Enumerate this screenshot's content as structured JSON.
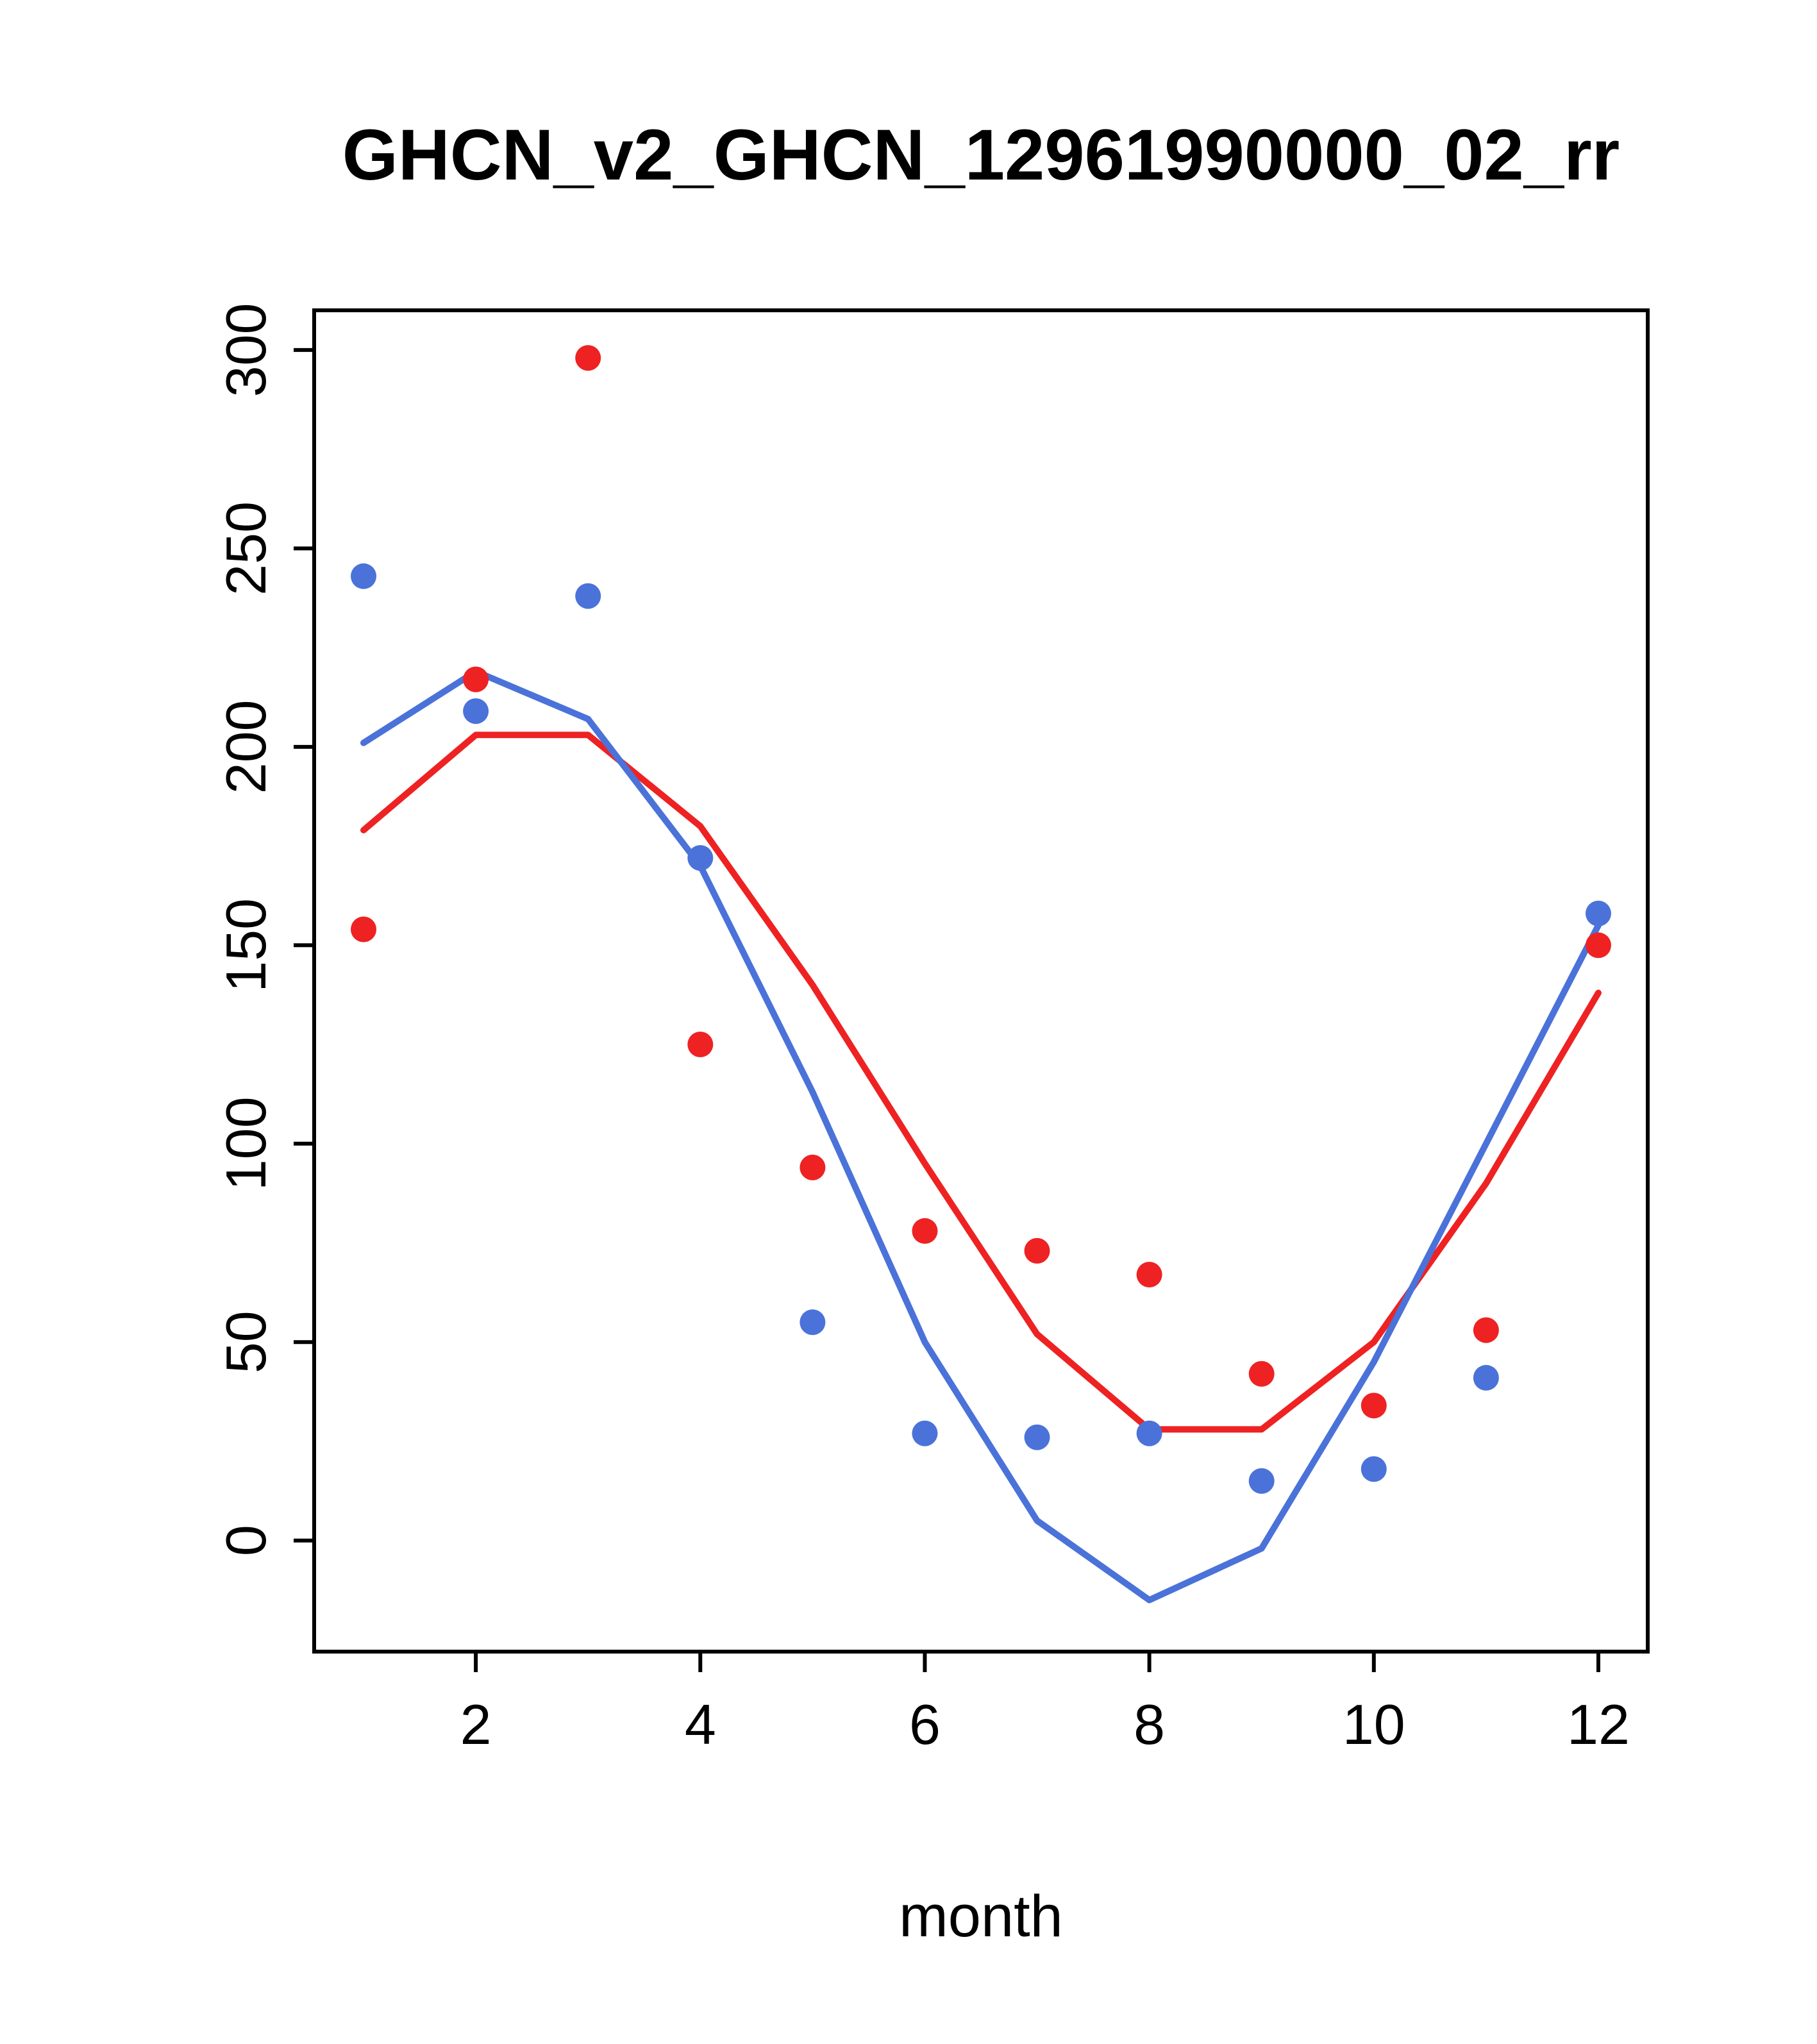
{
  "chart_data": {
    "type": "line",
    "title": "GHCN_v2_GHCN_12961990000_02_rr",
    "xlabel": "month",
    "ylabel": "",
    "x": [
      1,
      2,
      3,
      4,
      5,
      6,
      7,
      8,
      9,
      10,
      11,
      12
    ],
    "xticks": [
      2,
      4,
      6,
      8,
      10,
      12
    ],
    "yticks": [
      0,
      50,
      100,
      150,
      200,
      250,
      300
    ],
    "xlim": [
      0.56,
      12.44
    ],
    "ylim": [
      -28,
      310
    ],
    "grid": false,
    "legend_position": "none",
    "colors": {
      "red": "#ee2222",
      "blue": "#4a72d9",
      "axis": "#000000",
      "background": "#ffffff"
    },
    "series": [
      {
        "name": "red-line",
        "style": "line",
        "color": "#ee2222",
        "values": [
          179,
          203,
          203,
          180,
          140,
          95,
          52,
          28,
          28,
          50,
          90,
          138
        ]
      },
      {
        "name": "blue-line",
        "style": "line",
        "color": "#4a72d9",
        "values": [
          201,
          219,
          207,
          170,
          113,
          50,
          5,
          -15,
          -2,
          45,
          100,
          155
        ]
      },
      {
        "name": "red-points",
        "style": "points",
        "color": "#ee2222",
        "values": [
          154,
          217,
          298,
          125,
          94,
          78,
          73,
          67,
          42,
          34,
          53,
          150
        ]
      },
      {
        "name": "blue-points",
        "style": "points",
        "color": "#4a72d9",
        "values": [
          243,
          209,
          238,
          172,
          55,
          27,
          26,
          27,
          15,
          18,
          41,
          158
        ]
      }
    ]
  }
}
